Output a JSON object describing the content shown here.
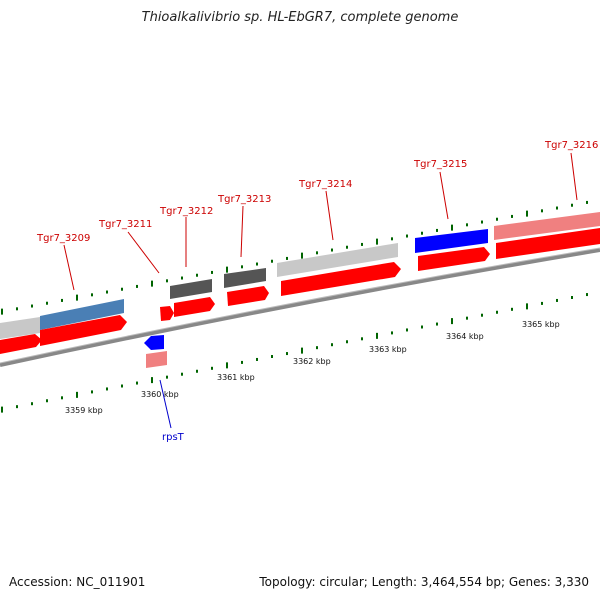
{
  "title": "Thioalkalivibrio sp. HL-EbGR7, complete genome",
  "footer": {
    "accession": "Accession: NC_011901",
    "summary": "Topology: circular; Length: 3,464,554 bp; Genes: 3,330"
  },
  "colors": {
    "background": "#ffffff",
    "backbone": "#888888",
    "cds_red": "#ff0000",
    "gene_grey": "#c8c8c8",
    "gene_dark": "#555555",
    "gene_steelblue": "#4a7fb5",
    "gene_blue": "#0000ff",
    "gene_pink": "#f08080",
    "tick": "#006400",
    "label_red": "#cc0000",
    "label_blue": "#0000cc"
  },
  "scale_labels": [
    "3359 kbp",
    "3360 kbp",
    "3361 kbp",
    "3362 kbp",
    "3363 kbp",
    "3364 kbp",
    "3365 kbp"
  ],
  "gene_labels": [
    "Tgr7_3209",
    "Tgr7_3211",
    "Tgr7_3212",
    "Tgr7_3213",
    "Tgr7_3214",
    "Tgr7_3215",
    "Tgr7_3216"
  ],
  "rna_label": "rpsT"
}
